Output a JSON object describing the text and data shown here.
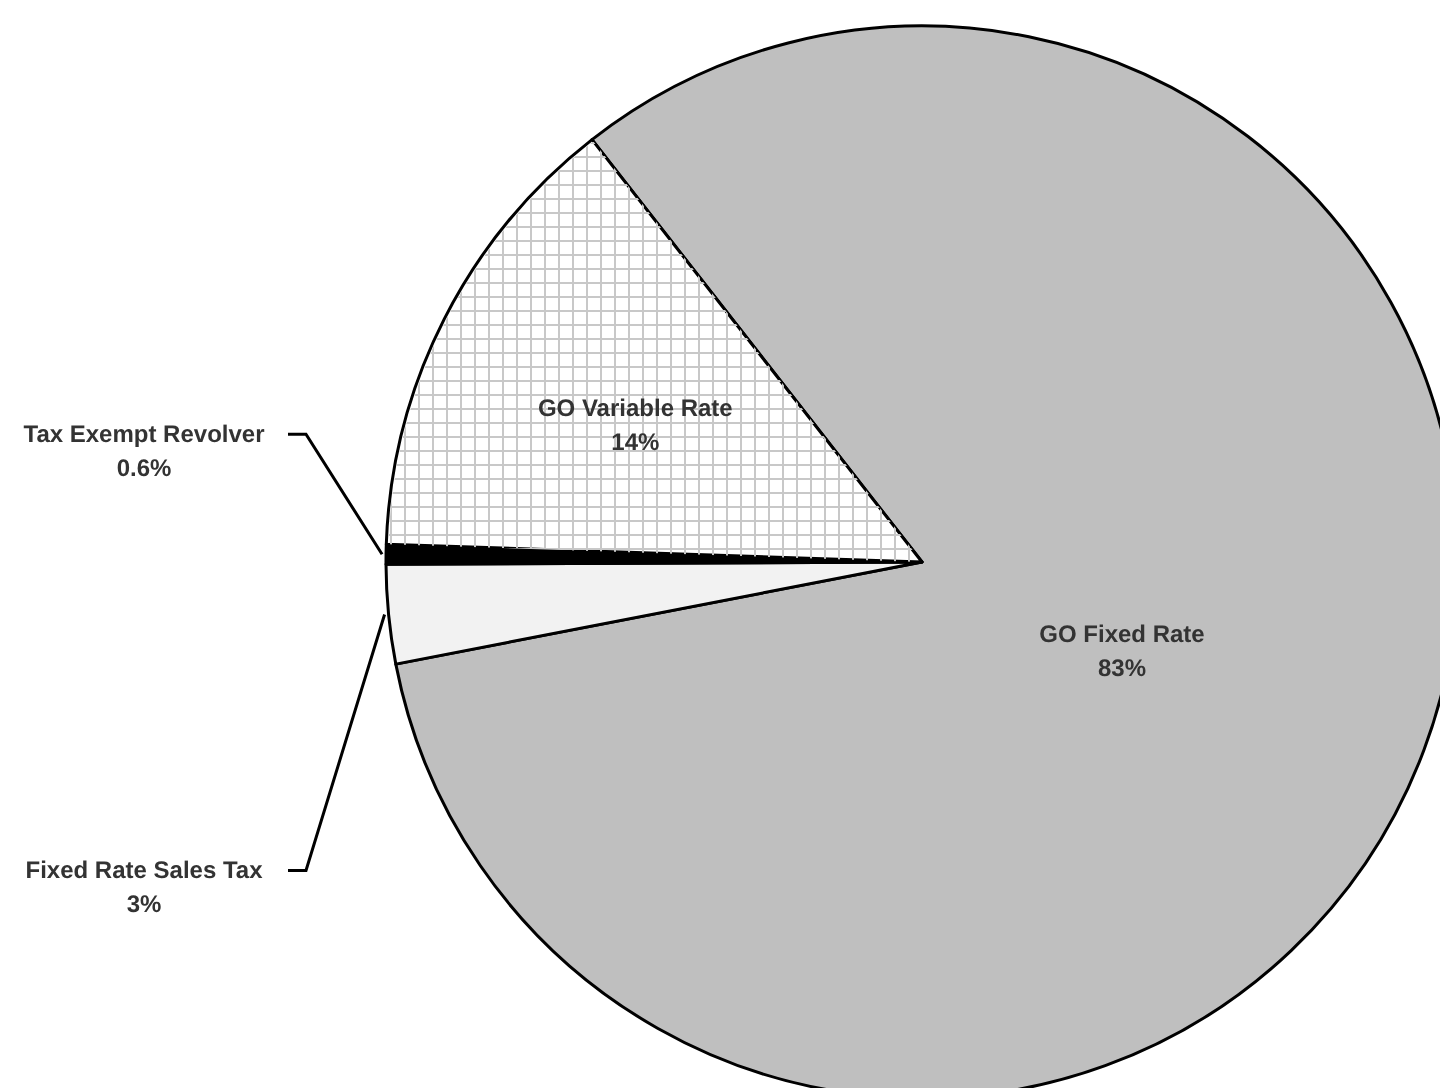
{
  "chart_data": {
    "type": "pie",
    "categories": [
      "GO Fixed Rate",
      "Fixed Rate Sales Tax",
      "Tax Exempt Revolver",
      "GO Variable Rate"
    ],
    "values": [
      83,
      3,
      0.6,
      14
    ],
    "value_labels": [
      "83%",
      "3%",
      "0.6%",
      "14%"
    ],
    "colors": [
      "#bfbfbf",
      "#f2f2f2",
      "#000000",
      "#ffffff"
    ]
  }
}
